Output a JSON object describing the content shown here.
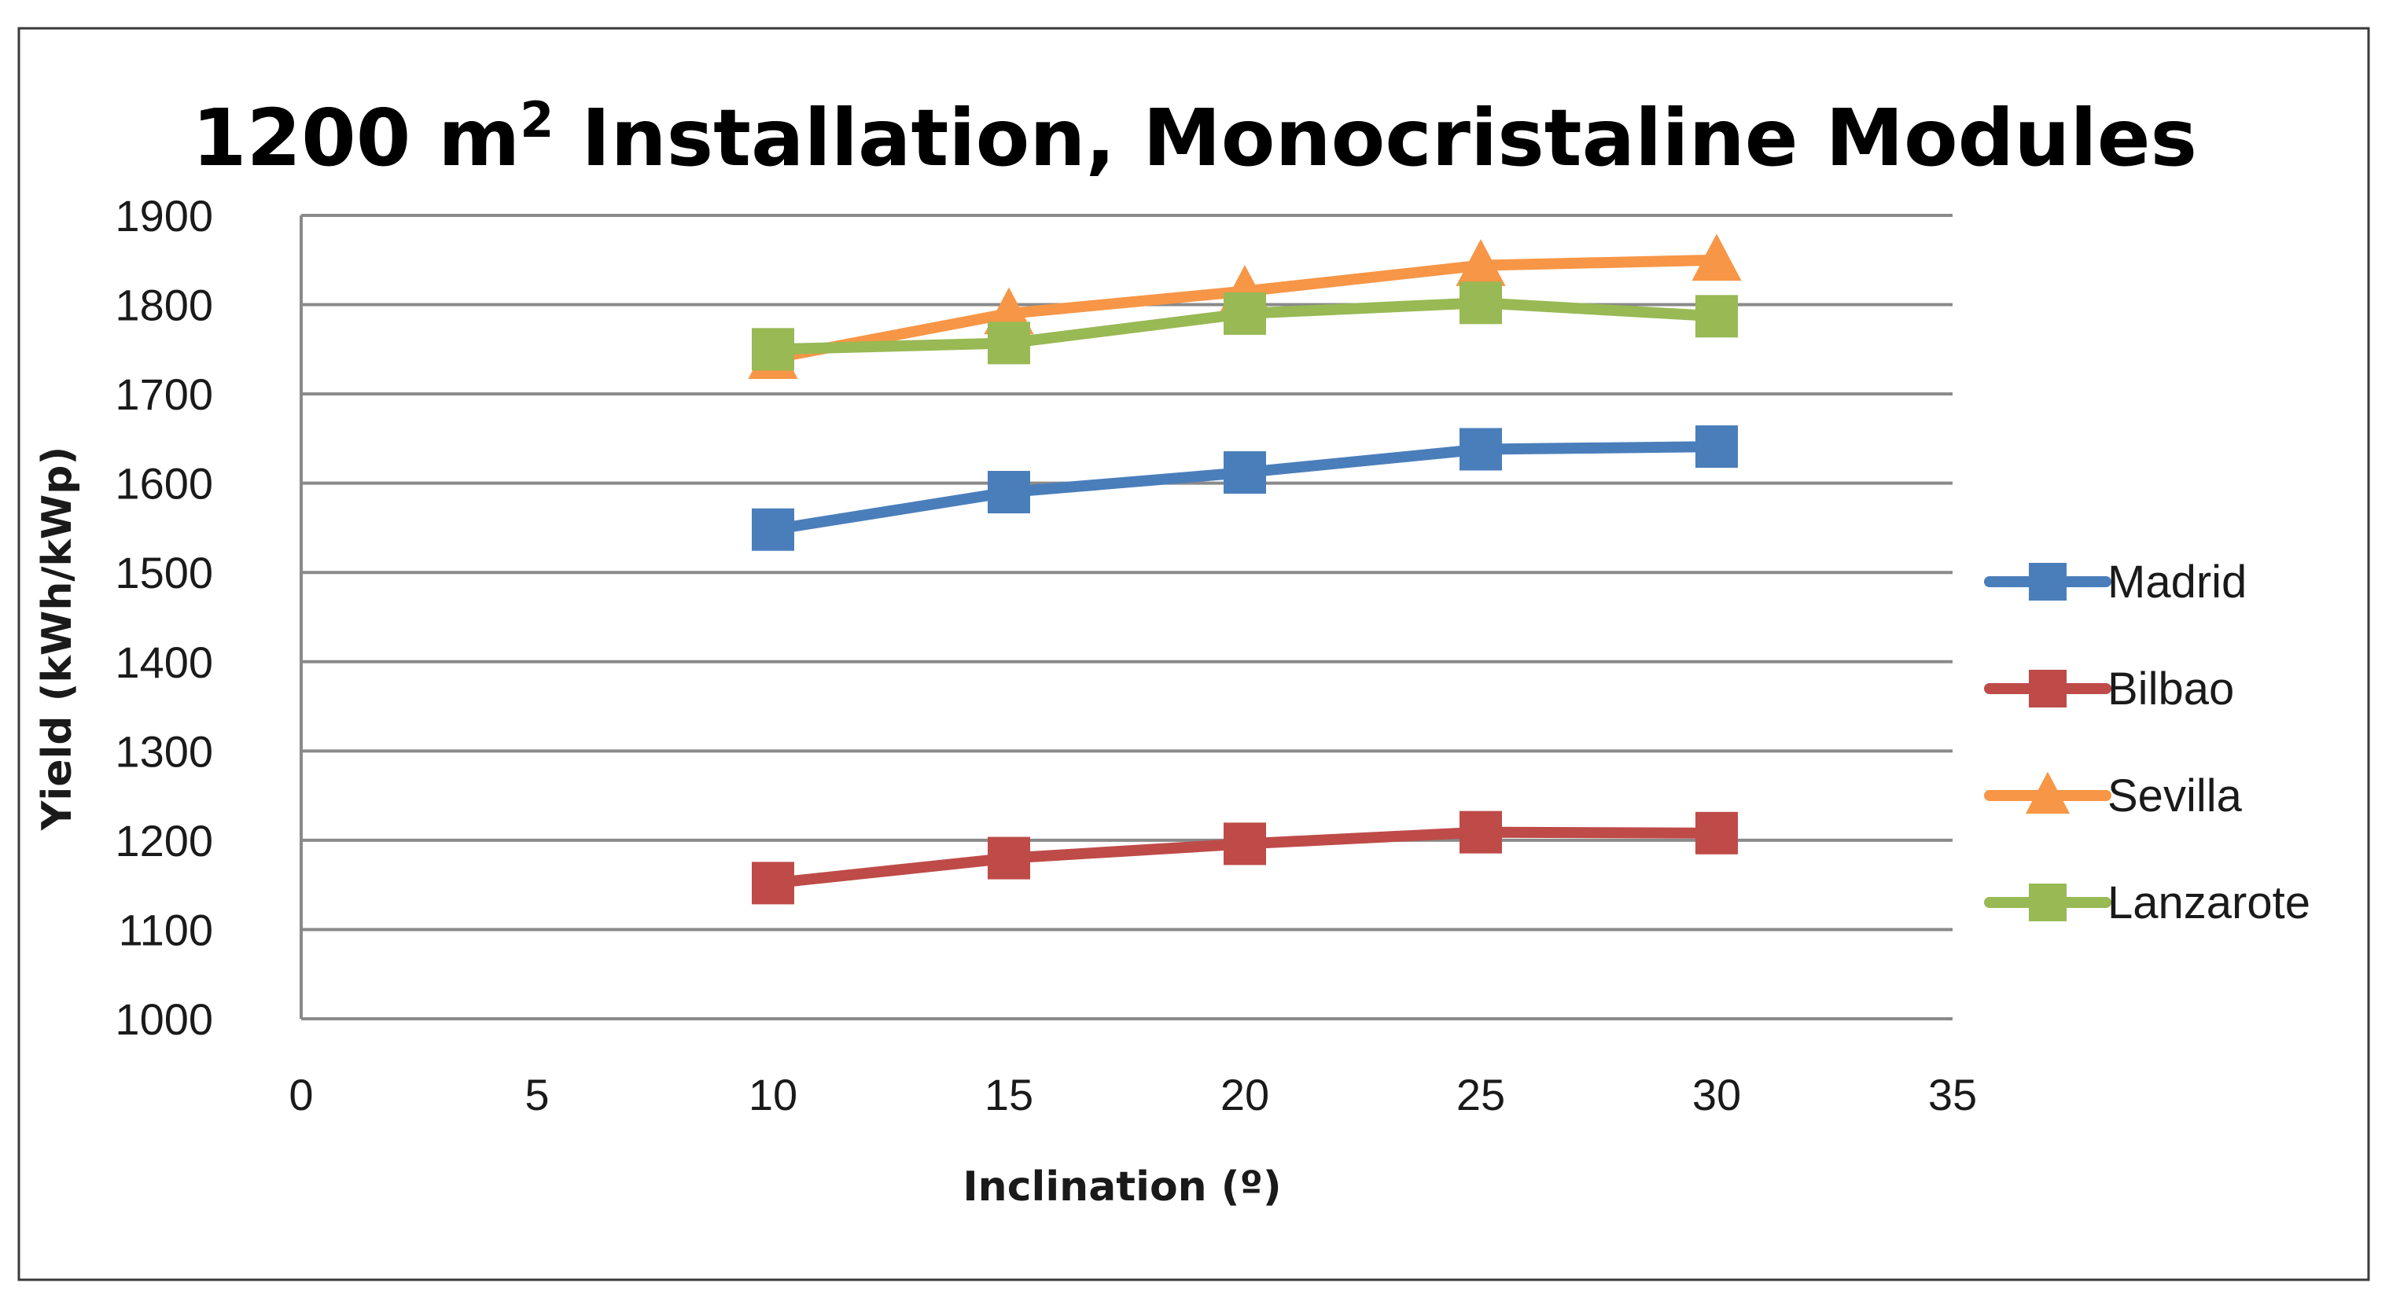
{
  "chart_data": {
    "type": "line",
    "title_prefix": "1200 m",
    "title_superscript": "2",
    "title_suffix": " Installation, Monocristaline Modules",
    "xlabel": "Inclination (º)",
    "ylabel": "Yield (kWh/kWp)",
    "xlim": [
      0,
      35
    ],
    "ylim": [
      1000,
      1900
    ],
    "x_ticks": [
      "0",
      "5",
      "10",
      "15",
      "20",
      "25",
      "30",
      "35"
    ],
    "y_ticks": [
      "1000",
      "1100",
      "1200",
      "1300",
      "1400",
      "1500",
      "1600",
      "1700",
      "1800",
      "1900"
    ],
    "grid": true,
    "legend_position": "right",
    "x": [
      10,
      15,
      20,
      25,
      30
    ],
    "series": [
      {
        "name": "Madrid",
        "marker": "square",
        "color": "#4a7ebb",
        "values": [
          1548,
          1590,
          1612,
          1638,
          1641
        ]
      },
      {
        "name": "Bilbao",
        "marker": "square",
        "color": "#be4b48",
        "values": [
          1152,
          1180,
          1196,
          1209,
          1208
        ]
      },
      {
        "name": "Sevilla",
        "marker": "triangle",
        "color": "#f79646",
        "values": [
          1740,
          1790,
          1815,
          1844,
          1850
        ]
      },
      {
        "name": "Lanzarote",
        "marker": "square",
        "color": "#98b954",
        "values": [
          1750,
          1757,
          1790,
          1802,
          1787
        ]
      }
    ]
  }
}
